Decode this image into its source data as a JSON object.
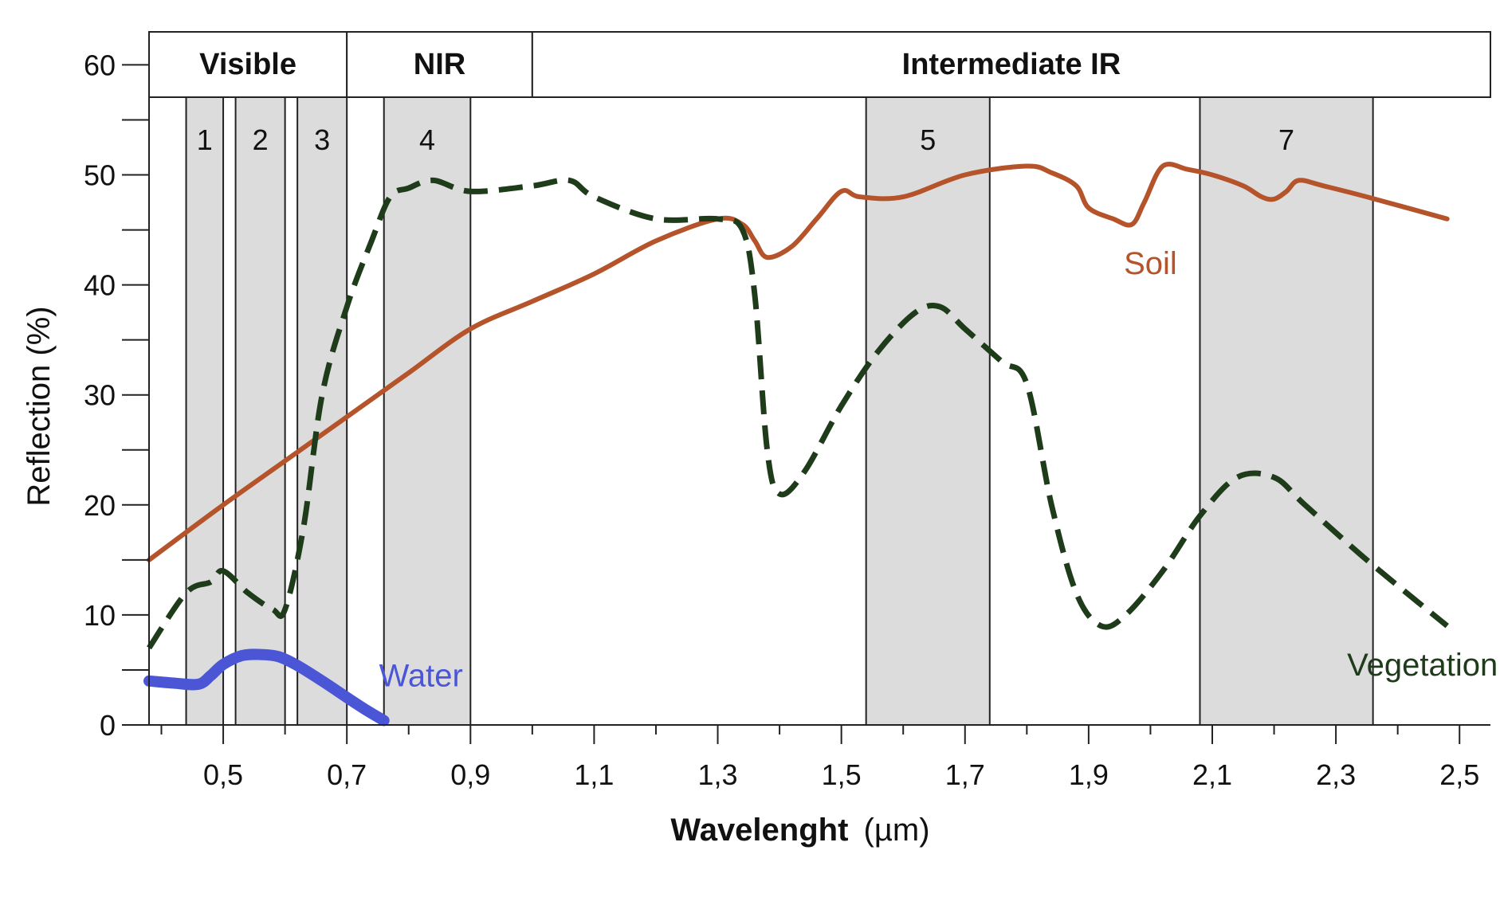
{
  "chart_data": {
    "type": "line",
    "xlabel_bold": "Wavelenght",
    "xlabel_unit": "(µm)",
    "ylabel": "Reflection (%)",
    "xlim": [
      0.38,
      2.55
    ],
    "ylim": [
      0,
      63
    ],
    "x_ticks": [
      0.5,
      0.7,
      0.9,
      1.1,
      1.3,
      1.5,
      1.7,
      1.9,
      2.1,
      2.3,
      2.5
    ],
    "x_tick_labels": [
      "0,5",
      "0,7",
      "0,9",
      "1,1",
      "1,3",
      "1,5",
      "1,7",
      "1,9",
      "2,1",
      "2,3",
      "2,5"
    ],
    "y_ticks": [
      0,
      10,
      20,
      30,
      40,
      50,
      60
    ],
    "y_tick_labels": [
      "0",
      "10",
      "20",
      "30",
      "40",
      "50",
      "60"
    ],
    "regions": [
      {
        "label": "Visible",
        "x": [
          0.38,
          0.7
        ]
      },
      {
        "label": "NIR",
        "x": [
          0.7,
          1.0
        ]
      },
      {
        "label": "Intermediate IR",
        "x": [
          1.0,
          2.55
        ]
      }
    ],
    "bands": [
      {
        "label": "1",
        "x": [
          0.44,
          0.5
        ]
      },
      {
        "label": "2",
        "x": [
          0.52,
          0.6
        ]
      },
      {
        "label": "3",
        "x": [
          0.62,
          0.7
        ]
      },
      {
        "label": "4",
        "x": [
          0.76,
          0.9
        ]
      },
      {
        "label": "5",
        "x": [
          1.54,
          1.74
        ]
      },
      {
        "label": "7",
        "x": [
          2.08,
          2.36
        ]
      }
    ],
    "series": [
      {
        "name": "Soil",
        "color": "#b5532a",
        "style": "solid",
        "x": [
          0.38,
          0.5,
          0.6,
          0.7,
          0.8,
          0.9,
          1.0,
          1.1,
          1.2,
          1.3,
          1.34,
          1.36,
          1.38,
          1.42,
          1.46,
          1.5,
          1.53,
          1.6,
          1.7,
          1.8,
          1.84,
          1.88,
          1.9,
          1.94,
          1.97,
          1.99,
          2.02,
          2.06,
          2.1,
          2.15,
          2.18,
          2.2,
          2.22,
          2.24,
          2.28,
          2.35,
          2.48
        ],
        "y": [
          15,
          20,
          24,
          28,
          32,
          36,
          38.5,
          41,
          44,
          46,
          45.5,
          44,
          42.5,
          43.5,
          46,
          48.5,
          48,
          48,
          50,
          50.8,
          50.2,
          49,
          47,
          46,
          45.5,
          47.5,
          50.8,
          50.5,
          50,
          49,
          48,
          47.8,
          48.5,
          49.5,
          49,
          48,
          46
        ]
      },
      {
        "name": "Vegetation",
        "color": "#1e3b1a",
        "style": "dashed",
        "x": [
          0.38,
          0.44,
          0.48,
          0.5,
          0.54,
          0.58,
          0.6,
          0.63,
          0.66,
          0.7,
          0.74,
          0.77,
          0.8,
          0.84,
          0.9,
          1.0,
          1.06,
          1.1,
          1.2,
          1.3,
          1.34,
          1.36,
          1.38,
          1.4,
          1.44,
          1.5,
          1.56,
          1.62,
          1.66,
          1.7,
          1.76,
          1.8,
          1.84,
          1.88,
          1.92,
          1.96,
          2.02,
          2.08,
          2.14,
          2.2,
          2.25,
          2.35,
          2.48
        ],
        "y": [
          7,
          12,
          13,
          14,
          12,
          10.5,
          10.5,
          18,
          30,
          38,
          44,
          48,
          48.8,
          49.5,
          48.5,
          49,
          49.5,
          48,
          46,
          46,
          45,
          39,
          25,
          21,
          23,
          29,
          34,
          37.5,
          38,
          36,
          33,
          31,
          20,
          12,
          9,
          10,
          14,
          19,
          22.5,
          22.5,
          20,
          15,
          9
        ]
      },
      {
        "name": "Water",
        "color": "#4a56d6",
        "style": "thick",
        "x": [
          0.38,
          0.42,
          0.46,
          0.48,
          0.5,
          0.53,
          0.56,
          0.59,
          0.62,
          0.66,
          0.7,
          0.73,
          0.76
        ],
        "y": [
          4,
          3.8,
          3.7,
          4.5,
          5.5,
          6.3,
          6.4,
          6.2,
          5.4,
          4,
          2.5,
          1.4,
          0.4
        ]
      }
    ],
    "series_labels": [
      {
        "name": "Water",
        "x": 0.82,
        "y": 3.5
      },
      {
        "name": "Soil",
        "x": 2.0,
        "y": 41
      },
      {
        "name": "Vegetation",
        "x": 2.44,
        "y": 4.5
      }
    ]
  }
}
